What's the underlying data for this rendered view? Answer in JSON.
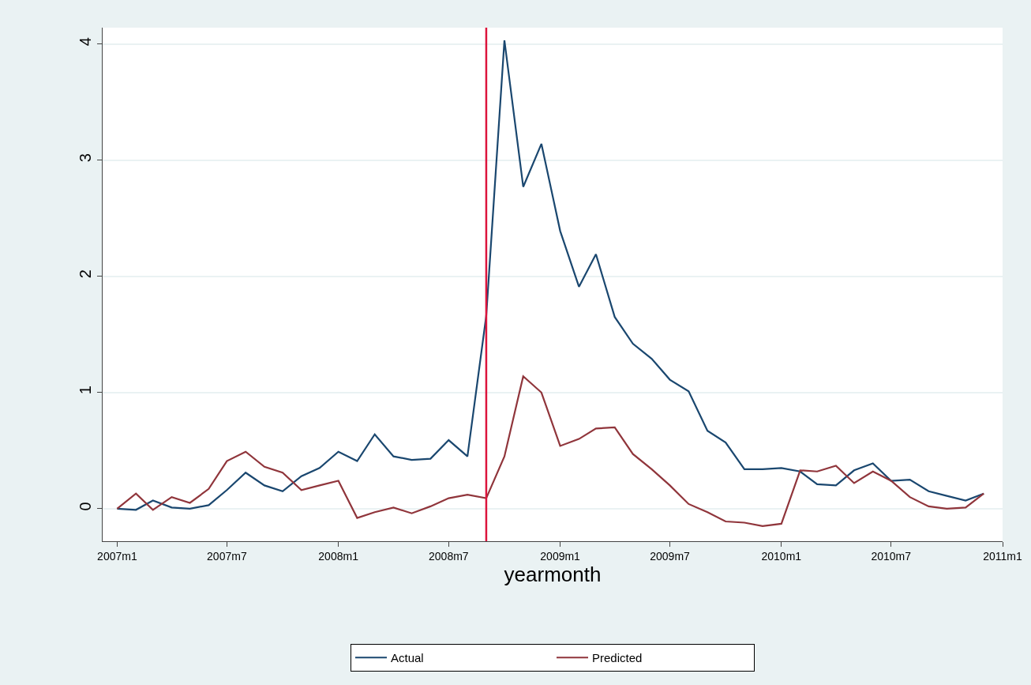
{
  "chart_data": {
    "type": "line",
    "xlabel": "yearmonth",
    "x": [
      "2007-01",
      "2007-02",
      "2007-03",
      "2007-04",
      "2007-05",
      "2007-06",
      "2007-07",
      "2007-08",
      "2007-09",
      "2007-10",
      "2007-11",
      "2007-12",
      "2008-01",
      "2008-02",
      "2008-03",
      "2008-04",
      "2008-05",
      "2008-06",
      "2008-07",
      "2008-08",
      "2008-09",
      "2008-10",
      "2008-11",
      "2008-12",
      "2009-01",
      "2009-02",
      "2009-03",
      "2009-04",
      "2009-05",
      "2009-06",
      "2009-07",
      "2009-08",
      "2009-09",
      "2009-10",
      "2009-11",
      "2009-12",
      "2010-01",
      "2010-02",
      "2010-03",
      "2010-04",
      "2010-05",
      "2010-06",
      "2010-07",
      "2010-08",
      "2010-09",
      "2010-10",
      "2010-11",
      "2010-12"
    ],
    "series": [
      {
        "name": "Actual",
        "color": "#1a476f",
        "values": [
          0.0,
          -0.01,
          0.07,
          0.01,
          0.0,
          0.03,
          0.16,
          0.31,
          0.2,
          0.15,
          0.28,
          0.35,
          0.49,
          0.41,
          0.64,
          0.45,
          0.42,
          0.43,
          0.59,
          0.45,
          1.66,
          4.03,
          2.77,
          3.14,
          2.39,
          1.91,
          2.19,
          1.65,
          1.42,
          1.29,
          1.11,
          1.01,
          0.67,
          0.57,
          0.34,
          0.34,
          0.35,
          0.32,
          0.21,
          0.2,
          0.33,
          0.39,
          0.24,
          0.25,
          0.15,
          0.11,
          0.07,
          0.13
        ]
      },
      {
        "name": "Predicted",
        "color": "#90353b",
        "values": [
          0.0,
          0.13,
          -0.01,
          0.1,
          0.05,
          0.17,
          0.41,
          0.49,
          0.36,
          0.31,
          0.16,
          0.2,
          0.24,
          -0.08,
          -0.03,
          0.01,
          -0.04,
          0.02,
          0.09,
          0.12,
          0.09,
          0.45,
          1.14,
          1.0,
          0.54,
          0.6,
          0.69,
          0.7,
          0.47,
          0.34,
          0.2,
          0.04,
          -0.03,
          -0.11,
          -0.12,
          -0.15,
          -0.13,
          0.33,
          0.32,
          0.37,
          0.22,
          0.32,
          0.24,
          0.1,
          0.02,
          0.0,
          0.01,
          0.13
        ]
      }
    ],
    "xlim": [
      "2006-12-08",
      "2011-01-01"
    ],
    "xticks": [
      {
        "value": "2007-01",
        "label": "2007m1"
      },
      {
        "value": "2007-07",
        "label": "2007m7"
      },
      {
        "value": "2008-01",
        "label": "2008m1"
      },
      {
        "value": "2008-07",
        "label": "2008m7"
      },
      {
        "value": "2009-01",
        "label": "2009m1"
      },
      {
        "value": "2009-07",
        "label": "2009m7"
      },
      {
        "value": "2010-01",
        "label": "2010m1"
      },
      {
        "value": "2010-07",
        "label": "2010m7"
      },
      {
        "value": "2011-01",
        "label": "2011m1"
      }
    ],
    "ylim": [
      -0.28,
      4.14
    ],
    "yticks": [
      0,
      1,
      2,
      3,
      4
    ],
    "ref_lines": [
      {
        "axis": "x",
        "value": "2008-09",
        "color": "#dc143c"
      }
    ],
    "grid": "y",
    "legend": "bottom",
    "marker": "none",
    "line_style": "solid"
  }
}
